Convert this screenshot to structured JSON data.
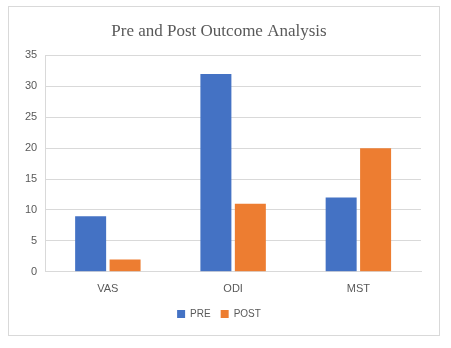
{
  "chart_data": {
    "type": "bar",
    "title": "Pre and Post Outcome Analysis",
    "categories": [
      "VAS",
      "ODI",
      "MST"
    ],
    "series": [
      {
        "name": "PRE",
        "color": "#4472c4",
        "values": [
          9,
          32,
          12
        ]
      },
      {
        "name": "POST",
        "color": "#ed7d31",
        "values": [
          2,
          11,
          20
        ]
      }
    ],
    "ylim": [
      0,
      35
    ],
    "yticks": [
      0,
      5,
      10,
      15,
      20,
      25,
      30,
      35
    ],
    "grid": true,
    "legend": "bottom"
  }
}
